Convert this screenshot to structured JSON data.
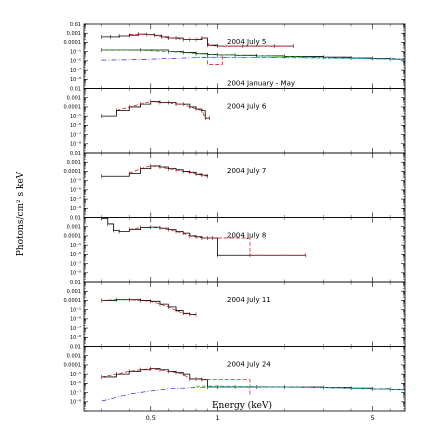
{
  "chart_data": {
    "type": "line",
    "xlabel": "Energy (keV)",
    "ylabel": "Photons/cm² s keV",
    "xscale": "log",
    "yscale": "log",
    "xlim": [
      0.25,
      7
    ],
    "x_tick_labels": [
      "0.5",
      "1",
      "5"
    ],
    "ylim": [
      1e-09,
      0.01
    ],
    "y_tick_labels": [
      "0.01",
      "0.001",
      "0.0001",
      "10⁻⁵",
      "10⁻⁶",
      "10⁻⁷",
      "10⁻⁸"
    ],
    "colors": {
      "data": "#000000",
      "model": "#cc0000",
      "component_green": "#22aa22",
      "component_blue": "#2222cc",
      "component_cyan": "#22aaaa"
    },
    "panels": [
      {
        "label": "2004 July 5",
        "secondary_label": "2004 January - May",
        "series": [
          {
            "role": "data",
            "style": "steps",
            "color": "#000000",
            "x": [
              0.3,
              0.33,
              0.36,
              0.4,
              0.44,
              0.48,
              0.52,
              0.56,
              0.6,
              0.65,
              0.7,
              0.75,
              0.8,
              0.85,
              0.9,
              1.0,
              1.3,
              1.8,
              2.2
            ],
            "y": [
              0.0004,
              0.0004,
              0.0005,
              0.0006,
              0.0008,
              0.0007,
              0.0006,
              0.0004,
              0.0003,
              0.0003,
              0.0002,
              0.0002,
              0.0002,
              0.0003,
              5e-05,
              4e-05,
              4e-05,
              4e-05,
              4e-05
            ]
          },
          {
            "role": "model",
            "style": "dashed",
            "color": "#cc0000",
            "x": [
              0.4,
              0.44,
              0.48,
              0.52,
              0.56,
              0.6,
              0.65,
              0.7,
              0.8,
              0.85,
              0.9,
              0.91,
              1.0,
              1.3,
              1.8,
              2.2
            ],
            "y": [
              0.0007,
              0.0008,
              0.0007,
              0.0006,
              0.0004,
              0.0003,
              0.0003,
              0.0002,
              0.0002,
              0.0003,
              0.0003,
              5e-05,
              4e-05,
              4e-05,
              4e-05,
              4e-05
            ]
          },
          {
            "role": "data",
            "style": "steps",
            "color": "#000000",
            "x": [
              0.3,
              0.45,
              0.6,
              0.7,
              0.8,
              0.9,
              1.0,
              1.2,
              1.5,
              2.0,
              3.0,
              4.0,
              5.0,
              6.0,
              7.0
            ],
            "y": [
              1.5e-05,
              1.5e-05,
              1e-05,
              8e-06,
              6e-06,
              5e-06,
              4.5e-06,
              4e-06,
              3.5e-06,
              3e-06,
              2.5e-06,
              2e-06,
              1.8e-06,
              1.5e-06,
              1.2e-06
            ]
          },
          {
            "role": "component",
            "style": "dashed",
            "color": "#22aa22",
            "x": [
              0.3,
              0.45,
              0.6,
              0.7,
              0.8,
              1.0,
              2.0,
              4.0,
              7.0
            ],
            "y": [
              1.5e-05,
              1.4e-05,
              1e-05,
              8e-06,
              6e-06,
              4.5e-06,
              3e-06,
              2.1e-06,
              1.3e-06
            ]
          },
          {
            "role": "component",
            "style": "dash-dot",
            "color": "#2222cc",
            "x": [
              0.3,
              0.4,
              0.5,
              0.6,
              0.7,
              0.8,
              1.0,
              2.0,
              4.0,
              7.0
            ],
            "y": [
              1.2e-06,
              1.3e-06,
              1.5e-06,
              1.8e-06,
              2e-06,
              2.2e-06,
              2.4e-06,
              2.3e-06,
              2e-06,
              1.6e-06
            ]
          },
          {
            "role": "component",
            "style": "dashed",
            "color": "#cc0000",
            "x": [
              0.9,
              0.9,
              1.05,
              1.05
            ],
            "y": [
              5e-06,
              4e-07,
              4e-07,
              5e-06
            ]
          },
          {
            "role": "component",
            "style": "dashed",
            "color": "#22aaaa",
            "x": [
              0.8,
              1.0,
              2.0,
              4.0,
              7.0
            ],
            "y": [
              2.5e-06,
              2.5e-06,
              2.2e-06,
              1.8e-06,
              1.4e-06
            ]
          }
        ]
      },
      {
        "label": "2004 July 6",
        "series": [
          {
            "role": "data",
            "style": "steps",
            "color": "#000000",
            "x": [
              0.3,
              0.35,
              0.4,
              0.45,
              0.5,
              0.55,
              0.6,
              0.65,
              0.7,
              0.75,
              0.8,
              0.85,
              0.88,
              0.92
            ],
            "y": [
              1e-05,
              4e-05,
              0.0001,
              0.0002,
              0.0004,
              0.0003,
              0.0003,
              0.0002,
              0.0002,
              0.0001,
              6e-05,
              4e-05,
              6e-06,
              6e-06
            ]
          },
          {
            "role": "model",
            "style": "dashed",
            "color": "#cc0000",
            "x": [
              0.35,
              0.4,
              0.45,
              0.5,
              0.55,
              0.6,
              0.65,
              0.7,
              0.75,
              0.8,
              0.85,
              0.88,
              0.92
            ],
            "y": [
              4e-05,
              0.0001,
              0.0002,
              0.0004,
              0.0003,
              0.0003,
              0.0002,
              0.0002,
              0.0001,
              6e-05,
              4e-05,
              6e-06,
              6e-06
            ]
          }
        ]
      },
      {
        "label": "2004 July 7",
        "series": [
          {
            "role": "data",
            "style": "steps",
            "color": "#000000",
            "x": [
              0.3,
              0.4,
              0.45,
              0.5,
              0.55,
              0.6,
              0.65,
              0.7,
              0.75,
              0.8,
              0.85,
              0.9
            ],
            "y": [
              3e-05,
              6e-05,
              0.0002,
              0.0004,
              0.0003,
              0.0002,
              0.00015,
              0.0001,
              8e-05,
              5e-05,
              4e-05,
              3e-05
            ]
          },
          {
            "role": "model",
            "style": "dashed",
            "color": "#cc0000",
            "x": [
              0.4,
              0.45,
              0.5,
              0.55,
              0.6,
              0.65,
              0.7,
              0.75,
              0.8,
              0.85,
              0.9
            ],
            "y": [
              6e-05,
              0.0002,
              0.0004,
              0.0003,
              0.0002,
              0.00015,
              0.0001,
              8e-05,
              5e-05,
              4e-05,
              3e-05
            ]
          }
        ]
      },
      {
        "label": "2004 July 8",
        "series": [
          {
            "role": "data",
            "style": "steps",
            "color": "#000000",
            "x": [
              0.3,
              0.32,
              0.34,
              0.36,
              0.4,
              0.45,
              0.5,
              0.55,
              0.6,
              0.65,
              0.7,
              0.75,
              0.8,
              0.85,
              0.9,
              0.95,
              1.0,
              1.4,
              2.5
            ],
            "y": [
              0.008,
              0.002,
              0.0004,
              0.0003,
              0.0005,
              0.0008,
              0.0009,
              0.0007,
              0.0005,
              0.0003,
              0.0002,
              0.0001,
              8e-05,
              6e-05,
              6e-05,
              6e-05,
              8e-07,
              8e-07,
              8e-07
            ]
          },
          {
            "role": "model",
            "style": "dashed",
            "color": "#cc0000",
            "x": [
              0.4,
              0.45,
              0.5,
              0.55,
              0.6,
              0.65,
              0.7,
              0.75,
              0.8,
              0.85,
              0.9,
              1.4,
              1.4,
              1.5,
              2.5
            ],
            "y": [
              0.0005,
              0.0008,
              0.0009,
              0.0007,
              0.0005,
              0.0003,
              0.0002,
              0.0001,
              8e-05,
              6e-05,
              6e-05,
              6e-05,
              8e-07,
              8e-07,
              8e-07
            ]
          }
        ]
      },
      {
        "label": "2004 July 11",
        "series": [
          {
            "role": "data",
            "style": "steps",
            "color": "#000000",
            "x": [
              0.3,
              0.35,
              0.4,
              0.45,
              0.5,
              0.55,
              0.6,
              0.65,
              0.7,
              0.75,
              0.8
            ],
            "y": [
              0.0001,
              0.00012,
              0.00012,
              0.0001,
              8e-05,
              4e-05,
              2e-05,
              8e-06,
              4e-06,
              3e-06,
              3e-06
            ]
          },
          {
            "role": "model",
            "style": "dashed",
            "color": "#cc0000",
            "x": [
              0.3,
              0.35,
              0.4,
              0.45,
              0.5,
              0.55,
              0.6,
              0.65,
              0.7,
              0.75,
              0.8
            ],
            "y": [
              0.0001,
              0.00012,
              0.00012,
              0.0001,
              8e-05,
              4e-05,
              2e-05,
              8e-06,
              4e-06,
              3e-06,
              3e-06
            ]
          }
        ]
      },
      {
        "label": "2004 July 24",
        "series": [
          {
            "role": "data",
            "style": "steps",
            "color": "#000000",
            "x": [
              0.3,
              0.35,
              0.4,
              0.45,
              0.5,
              0.55,
              0.6,
              0.65,
              0.7,
              0.75,
              0.8,
              0.85,
              0.9,
              1.0,
              1.2,
              1.5,
              2.0,
              3.0,
              4.0,
              5.0,
              6.0,
              7.0
            ],
            "y": [
              5e-06,
              1e-05,
              2e-05,
              3e-05,
              4e-05,
              3e-05,
              2e-05,
              1.5e-05,
              1e-05,
              3e-06,
              3e-06,
              2.5e-06,
              4e-07,
              4e-07,
              4e-07,
              4e-07,
              4e-07,
              3.5e-07,
              3e-07,
              2.5e-07,
              2.2e-07,
              2e-07
            ]
          },
          {
            "role": "model",
            "style": "dashed",
            "color": "#cc0000",
            "x": [
              0.3,
              0.35,
              0.4,
              0.45,
              0.5,
              0.55,
              0.6,
              0.65,
              0.7,
              0.75,
              0.8,
              0.85,
              0.9,
              1.0,
              1.2,
              1.4,
              1.4
            ],
            "y": [
              5e-06,
              1e-05,
              2e-05,
              3e-05,
              4e-05,
              3e-05,
              2e-05,
              1.5e-05,
              1e-05,
              3e-06,
              3e-06,
              2.5e-06,
              2.5e-06,
              2.5e-06,
              2.5e-06,
              2.5e-06,
              4e-08
            ]
          },
          {
            "role": "component",
            "style": "dash-dot",
            "color": "#2222cc",
            "x": [
              0.3,
              0.35,
              0.4,
              0.5,
              0.6,
              0.7,
              0.8,
              1.0,
              1.5,
              2.0,
              3.0,
              4.0,
              5.0,
              7.0
            ],
            "y": [
              1.2e-08,
              3e-08,
              7e-08,
              1.5e-07,
              2.5e-07,
              3e-07,
              3.5e-07,
              4e-07,
              4e-07,
              3.8e-07,
              3.3e-07,
              2.8e-07,
              2.5e-07,
              2e-07
            ]
          },
          {
            "role": "component",
            "style": "dashed",
            "color": "#22aa22",
            "x": [
              0.8,
              1.0,
              1.5,
              2.0,
              3.0,
              4.0,
              5.0,
              7.0
            ],
            "y": [
              5e-07,
              5e-07,
              4.5e-07,
              4.2e-07,
              3.6e-07,
              3e-07,
              2.6e-07,
              2.1e-07
            ]
          },
          {
            "role": "component",
            "style": "dashed",
            "color": "#22aaaa",
            "x": [
              0.9,
              1.0,
              2.0,
              3.0,
              4.0,
              5.0,
              7.0
            ],
            "y": [
              4.2e-07,
              4.2e-07,
              4e-07,
              3.4e-07,
              2.9e-07,
              2.5e-07,
              2e-07
            ]
          }
        ]
      }
    ]
  }
}
